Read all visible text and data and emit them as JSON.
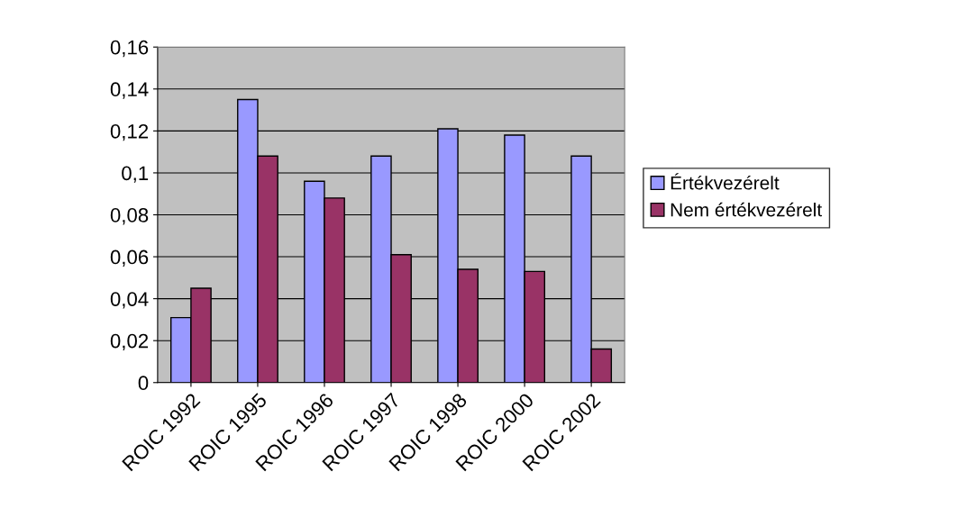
{
  "chart_data": {
    "type": "bar",
    "categories": [
      "ROIC 1992",
      "ROIC 1995",
      "ROIC 1996",
      "ROIC 1997",
      "ROIC 1998",
      "ROIC 2000",
      "ROIC 2002"
    ],
    "series": [
      {
        "name": "Értékvezérelt",
        "color": "#9999ff",
        "values": [
          0.031,
          0.135,
          0.096,
          0.108,
          0.121,
          0.118,
          0.108
        ]
      },
      {
        "name": "Nem értékvezérelt",
        "color": "#993366",
        "values": [
          0.045,
          0.108,
          0.088,
          0.061,
          0.054,
          0.053,
          0.016
        ]
      }
    ],
    "ylim": [
      0,
      0.16
    ],
    "yticks": [
      {
        "value": 0,
        "label": "0"
      },
      {
        "value": 0.02,
        "label": "0,02"
      },
      {
        "value": 0.04,
        "label": "0,04"
      },
      {
        "value": 0.06,
        "label": "0,06"
      },
      {
        "value": 0.08,
        "label": "0,08"
      },
      {
        "value": 0.1,
        "label": "0,1"
      },
      {
        "value": 0.12,
        "label": "0,12"
      },
      {
        "value": 0.14,
        "label": "0,14"
      },
      {
        "value": 0.16,
        "label": "0,16"
      }
    ],
    "grid": "y",
    "legend": "right"
  }
}
